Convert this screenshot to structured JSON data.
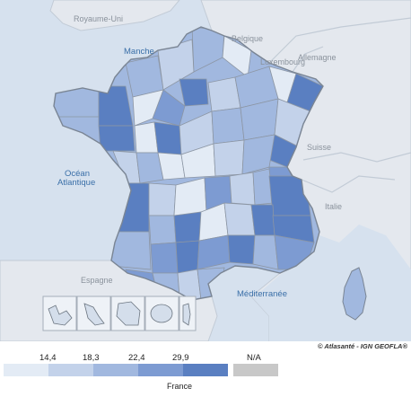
{
  "map": {
    "labels": {
      "uk": "Royaume-Uni",
      "manche": "Manche",
      "belgique": "Belgique",
      "luxembourg": "Luxembourg",
      "allemagne": "Allemagne",
      "suisse": "Suisse",
      "italie": "Italie",
      "ocean_line1": "Océan",
      "ocean_line2": "Atlantique",
      "espagne": "Espagne",
      "mediterranee": "Méditerranée"
    },
    "colors": {
      "background": "#d6e1ee",
      "land_neighbors": "#e4e8ee",
      "border": "#8c96a4",
      "class1": "#e3ebf5",
      "class2": "#c3d2ea",
      "class3": "#a1b8df",
      "class4": "#7d9bd2",
      "class5": "#5a7fc1",
      "na": "#c8c8c8"
    },
    "credit": "© Atlasanté - IGN GEOFLA®"
  },
  "legend": {
    "ticks": [
      "14,4",
      "18,3",
      "22,4",
      "29,9"
    ],
    "na_label": "N/A",
    "title": "France",
    "classes": [
      {
        "color": "#e3ebf5"
      },
      {
        "color": "#c3d2ea"
      },
      {
        "color": "#a1b8df"
      },
      {
        "color": "#7d9bd2"
      },
      {
        "color": "#5a7fc1"
      }
    ],
    "na_color": "#c8c8c8"
  }
}
